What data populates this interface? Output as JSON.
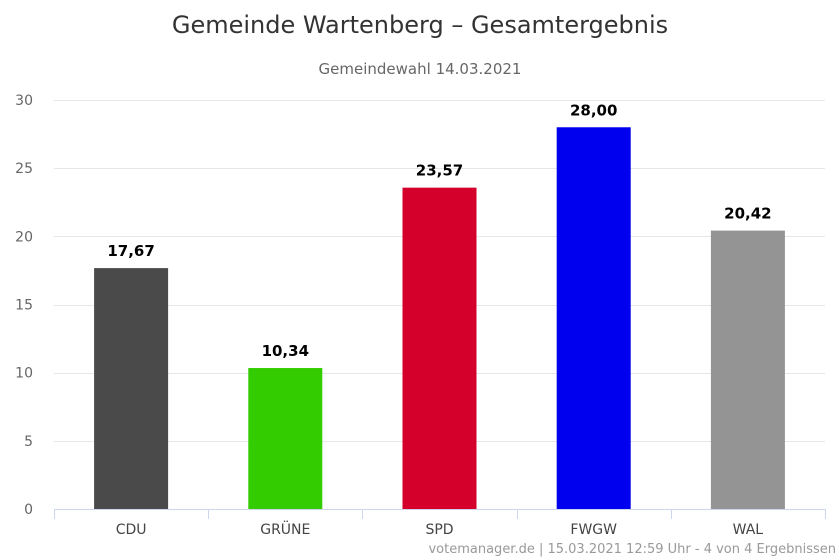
{
  "chart_data": {
    "type": "bar",
    "title": "Gemeinde Wartenberg – Gesamtergebnis",
    "subtitle": "Gemeindewahl 14.03.2021",
    "xlabel": "",
    "ylabel": "",
    "categories": [
      "CDU",
      "GRÜNE",
      "SPD",
      "FWGW",
      "WAL"
    ],
    "values": [
      17.67,
      10.34,
      23.57,
      28.0,
      20.42
    ],
    "data_labels": [
      "17,67",
      "10,34",
      "23,57",
      "28,00",
      "20,42"
    ],
    "colors": [
      "#4a4a4a",
      "#33cc00",
      "#d4002b",
      "#0000ee",
      "#949494"
    ],
    "ylim": [
      0,
      30
    ],
    "yticks": [
      0,
      5,
      10,
      15,
      20,
      25,
      30
    ],
    "grid": true,
    "legend": false
  },
  "credits": "votemanager.de | 15.03.2021 12:59 Uhr - 4 von 4 Ergebnissen"
}
